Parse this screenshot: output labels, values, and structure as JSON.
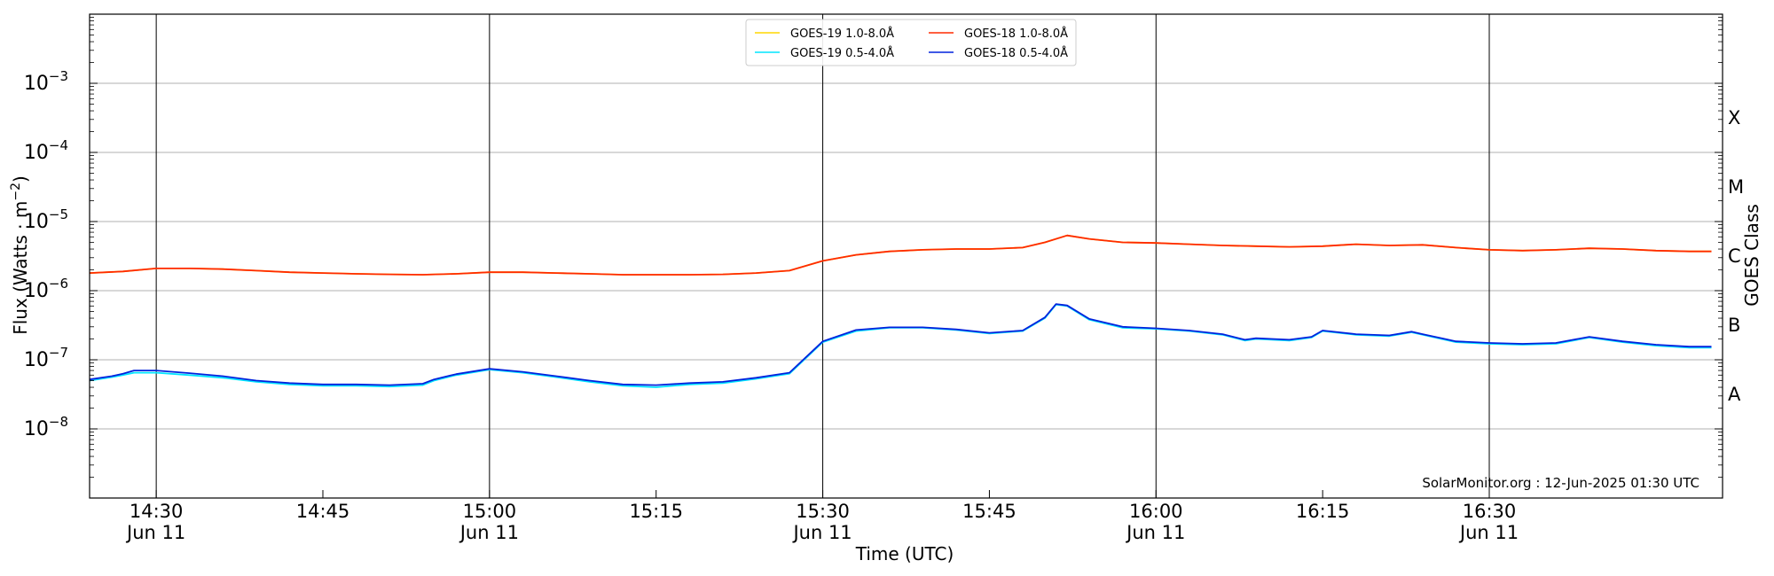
{
  "chart_data": {
    "type": "line",
    "title": "",
    "xlabel": "Time (UTC)",
    "ylabel_main": "Flux (Watts · m",
    "ylabel_exp": "−2",
    "ylabel_close": ")",
    "y2label": "GOES Class",
    "yscale": "log",
    "ylim": [
      1e-09,
      0.01
    ],
    "xlim": [
      "2025-06-11 14:24",
      "2025-06-11 16:51"
    ],
    "grid": "horizontal",
    "legend_position": "top-center",
    "y_ticks": [
      {
        "value": 1e-08,
        "base": "10",
        "exp": "−8"
      },
      {
        "value": 1e-07,
        "base": "10",
        "exp": "−7"
      },
      {
        "value": 1e-06,
        "base": "10",
        "exp": "−6"
      },
      {
        "value": 1e-05,
        "base": "10",
        "exp": "−5"
      },
      {
        "value": 0.0001,
        "base": "10",
        "exp": "−4"
      },
      {
        "value": 0.001,
        "base": "10",
        "exp": "−3"
      }
    ],
    "x_ticks": [
      {
        "time": "14:30",
        "label": "14:30",
        "sub": "Jun 11",
        "vline": true
      },
      {
        "time": "14:45",
        "label": "14:45",
        "sub": "",
        "vline": false
      },
      {
        "time": "15:00",
        "label": "15:00",
        "sub": "Jun 11",
        "vline": true
      },
      {
        "time": "15:15",
        "label": "15:15",
        "sub": "",
        "vline": false
      },
      {
        "time": "15:30",
        "label": "15:30",
        "sub": "Jun 11",
        "vline": true
      },
      {
        "time": "15:45",
        "label": "15:45",
        "sub": "",
        "vline": false
      },
      {
        "time": "16:00",
        "label": "16:00",
        "sub": "Jun 11",
        "vline": true
      },
      {
        "time": "16:15",
        "label": "16:15",
        "sub": "",
        "vline": false
      },
      {
        "time": "16:30",
        "label": "16:30",
        "sub": "Jun 11",
        "vline": true
      }
    ],
    "goes_classes": [
      {
        "label": "A",
        "center": 3.16e-08
      },
      {
        "label": "B",
        "center": 3.16e-07
      },
      {
        "label": "C",
        "center": 3.16e-06
      },
      {
        "label": "M",
        "center": 3.16e-05
      },
      {
        "label": "X",
        "center": 0.000316
      }
    ],
    "series": [
      {
        "name": "GOES-19 1.0-8.0Å",
        "color": "#ffd700",
        "x": [
          "14:24",
          "14:27",
          "14:30",
          "14:33",
          "14:36",
          "14:39",
          "14:42",
          "14:45",
          "14:48",
          "14:51",
          "14:54",
          "14:57",
          "15:00",
          "15:03",
          "15:06",
          "15:09",
          "15:12",
          "15:15",
          "15:18",
          "15:21",
          "15:24",
          "15:27",
          "15:30",
          "15:33",
          "15:36",
          "15:39",
          "15:42",
          "15:45",
          "15:48",
          "15:50",
          "15:52",
          "15:54",
          "15:57",
          "16:00",
          "16:03",
          "16:06",
          "16:09",
          "16:12",
          "16:15",
          "16:18",
          "16:21",
          "16:24",
          "16:27",
          "16:30",
          "16:33",
          "16:36",
          "16:39",
          "16:42",
          "16:45",
          "16:48",
          "16:50"
        ],
        "y": [
          1.8e-06,
          1.9e-06,
          2.1e-06,
          2.1e-06,
          2.05e-06,
          1.95e-06,
          1.85e-06,
          1.8e-06,
          1.75e-06,
          1.72e-06,
          1.7e-06,
          1.75e-06,
          1.85e-06,
          1.85e-06,
          1.8e-06,
          1.75e-06,
          1.7e-06,
          1.7e-06,
          1.7e-06,
          1.72e-06,
          1.8e-06,
          1.95e-06,
          2.7e-06,
          3.3e-06,
          3.7e-06,
          3.9e-06,
          4e-06,
          4e-06,
          4.2e-06,
          5e-06,
          6.3e-06,
          5.6e-06,
          5e-06,
          4.9e-06,
          4.7e-06,
          4.5e-06,
          4.4e-06,
          4.3e-06,
          4.4e-06,
          4.7e-06,
          4.5e-06,
          4.6e-06,
          4.2e-06,
          3.9e-06,
          3.8e-06,
          3.9e-06,
          4.1e-06,
          4e-06,
          3.8e-06,
          3.7e-06,
          3.7e-06
        ]
      },
      {
        "name": "GOES-18 1.0-8.0Å",
        "color": "#ff2a00",
        "x": [
          "14:24",
          "14:27",
          "14:30",
          "14:33",
          "14:36",
          "14:39",
          "14:42",
          "14:45",
          "14:48",
          "14:51",
          "14:54",
          "14:57",
          "15:00",
          "15:03",
          "15:06",
          "15:09",
          "15:12",
          "15:15",
          "15:18",
          "15:21",
          "15:24",
          "15:27",
          "15:30",
          "15:33",
          "15:36",
          "15:39",
          "15:42",
          "15:45",
          "15:48",
          "15:50",
          "15:52",
          "15:54",
          "15:57",
          "16:00",
          "16:03",
          "16:06",
          "16:09",
          "16:12",
          "16:15",
          "16:18",
          "16:21",
          "16:24",
          "16:27",
          "16:30",
          "16:33",
          "16:36",
          "16:39",
          "16:42",
          "16:45",
          "16:48",
          "16:50"
        ],
        "y": [
          1.8e-06,
          1.9e-06,
          2.1e-06,
          2.1e-06,
          2.05e-06,
          1.95e-06,
          1.85e-06,
          1.8e-06,
          1.75e-06,
          1.72e-06,
          1.7e-06,
          1.75e-06,
          1.85e-06,
          1.85e-06,
          1.8e-06,
          1.75e-06,
          1.7e-06,
          1.7e-06,
          1.7e-06,
          1.72e-06,
          1.8e-06,
          1.95e-06,
          2.7e-06,
          3.3e-06,
          3.7e-06,
          3.9e-06,
          4e-06,
          4e-06,
          4.2e-06,
          5e-06,
          6.3e-06,
          5.6e-06,
          5e-06,
          4.9e-06,
          4.7e-06,
          4.5e-06,
          4.4e-06,
          4.3e-06,
          4.4e-06,
          4.7e-06,
          4.5e-06,
          4.6e-06,
          4.2e-06,
          3.9e-06,
          3.8e-06,
          3.9e-06,
          4.1e-06,
          4e-06,
          3.8e-06,
          3.7e-06,
          3.7e-06
        ]
      },
      {
        "name": "GOES-19 0.5-4.0Å",
        "color": "#00e5ff",
        "x": [
          "14:24",
          "14:26",
          "14:27",
          "14:28",
          "14:30",
          "14:33",
          "14:36",
          "14:39",
          "14:42",
          "14:45",
          "14:48",
          "14:51",
          "14:54",
          "14:55",
          "14:57",
          "15:00",
          "15:03",
          "15:06",
          "15:09",
          "15:12",
          "15:15",
          "15:18",
          "15:21",
          "15:24",
          "15:27",
          "15:30",
          "15:33",
          "15:36",
          "15:39",
          "15:42",
          "15:45",
          "15:48",
          "15:50",
          "15:51",
          "15:52",
          "15:54",
          "15:57",
          "16:00",
          "16:03",
          "16:06",
          "16:08",
          "16:09",
          "16:12",
          "16:14",
          "16:15",
          "16:18",
          "16:21",
          "16:23",
          "16:24",
          "16:27",
          "16:30",
          "16:33",
          "16:36",
          "16:39",
          "16:42",
          "16:45",
          "16:48",
          "16:50"
        ],
        "y": [
          5e-08,
          5.6e-08,
          6e-08,
          6.5e-08,
          6.5e-08,
          6e-08,
          5.5e-08,
          4.8e-08,
          4.4e-08,
          4.2e-08,
          4.2e-08,
          4.1e-08,
          4.3e-08,
          5e-08,
          6e-08,
          7.2e-08,
          6.5e-08,
          5.6e-08,
          4.8e-08,
          4.2e-08,
          4e-08,
          4.4e-08,
          4.6e-08,
          5.3e-08,
          6.3e-08,
          1.8e-07,
          2.6e-07,
          2.9e-07,
          2.9e-07,
          2.7e-07,
          2.4e-07,
          2.6e-07,
          4e-07,
          6.3e-07,
          6e-07,
          3.8e-07,
          2.9e-07,
          2.8e-07,
          2.6e-07,
          2.3e-07,
          1.9e-07,
          2e-07,
          1.9e-07,
          2.1e-07,
          2.6e-07,
          2.3e-07,
          2.2e-07,
          2.5e-07,
          2.3e-07,
          1.8e-07,
          1.7e-07,
          1.65e-07,
          1.7e-07,
          2.1e-07,
          1.8e-07,
          1.6e-07,
          1.5e-07,
          1.5e-07
        ]
      },
      {
        "name": "GOES-18 0.5-4.0Å",
        "color": "#0022dd",
        "x": [
          "14:24",
          "14:26",
          "14:27",
          "14:28",
          "14:30",
          "14:33",
          "14:36",
          "14:39",
          "14:42",
          "14:45",
          "14:48",
          "14:51",
          "14:54",
          "14:55",
          "14:57",
          "15:00",
          "15:03",
          "15:06",
          "15:09",
          "15:12",
          "15:15",
          "15:18",
          "15:21",
          "15:24",
          "15:27",
          "15:30",
          "15:33",
          "15:36",
          "15:39",
          "15:42",
          "15:45",
          "15:48",
          "15:50",
          "15:51",
          "15:52",
          "15:54",
          "15:57",
          "16:00",
          "16:03",
          "16:06",
          "16:08",
          "16:09",
          "16:12",
          "16:14",
          "16:15",
          "16:18",
          "16:21",
          "16:23",
          "16:24",
          "16:27",
          "16:30",
          "16:33",
          "16:36",
          "16:39",
          "16:42",
          "16:45",
          "16:48",
          "16:50"
        ],
        "y": [
          5.2e-08,
          5.8e-08,
          6.3e-08,
          7e-08,
          7e-08,
          6.4e-08,
          5.8e-08,
          5e-08,
          4.6e-08,
          4.4e-08,
          4.4e-08,
          4.3e-08,
          4.5e-08,
          5.2e-08,
          6.2e-08,
          7.4e-08,
          6.7e-08,
          5.8e-08,
          5e-08,
          4.4e-08,
          4.3e-08,
          4.6e-08,
          4.8e-08,
          5.5e-08,
          6.5e-08,
          1.85e-07,
          2.7e-07,
          2.95e-07,
          2.95e-07,
          2.75e-07,
          2.45e-07,
          2.65e-07,
          4.1e-07,
          6.4e-07,
          6.1e-07,
          3.9e-07,
          3e-07,
          2.85e-07,
          2.65e-07,
          2.35e-07,
          1.95e-07,
          2.05e-07,
          1.95e-07,
          2.15e-07,
          2.65e-07,
          2.35e-07,
          2.25e-07,
          2.55e-07,
          2.35e-07,
          1.85e-07,
          1.75e-07,
          1.7e-07,
          1.75e-07,
          2.15e-07,
          1.85e-07,
          1.65e-07,
          1.55e-07,
          1.55e-07
        ]
      }
    ],
    "legend_order": [
      0,
      2,
      1,
      3
    ],
    "annotation": "SolarMonitor.org : 12-Jun-2025 01:30 UTC"
  }
}
